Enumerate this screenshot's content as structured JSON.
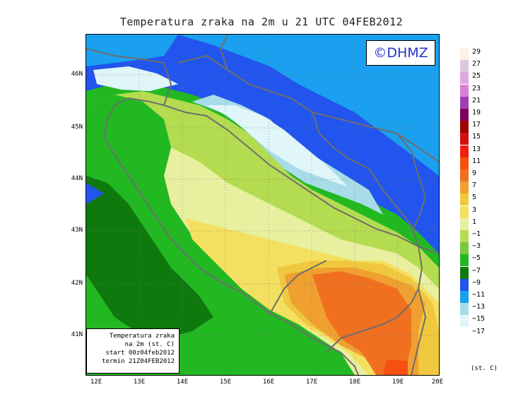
{
  "title": "Temperatura zraka na 2m u 21 UTC 04FEB2012",
  "logo": "©DHMZ",
  "info": {
    "line1": "Temperatura zraka",
    "line2": "na 2m (st. C)",
    "line3": "start 00z04feb2012",
    "line4": "termin 21Z04FEB2012"
  },
  "lat_labels": [
    "46N",
    "45N",
    "44N",
    "43N",
    "42N",
    "41N"
  ],
  "lon_labels": [
    "12E",
    "13E",
    "14E",
    "15E",
    "16E",
    "17E",
    "18E",
    "19E",
    "20E"
  ],
  "legend": {
    "labels": [
      "29",
      "27",
      "25",
      "23",
      "21",
      "19",
      "17",
      "15",
      "13",
      "11",
      "9",
      "7",
      "5",
      "3",
      "1",
      "−1",
      "−3",
      "−5",
      "−7",
      "−9",
      "−11",
      "−13",
      "−15",
      "−17"
    ],
    "colors": [
      "#fff0e6",
      "#dcc8dc",
      "#e0a6e0",
      "#d880d8",
      "#a040b0",
      "#800060",
      "#a00000",
      "#d21010",
      "#f02010",
      "#f85010",
      "#f07020",
      "#f0a030",
      "#f0c840",
      "#f4e060",
      "#e8f0a0",
      "#b4dc50",
      "#78c840",
      "#22b822",
      "#0e7a0e",
      "#2255ee",
      "#1aa0ee",
      "#a8dce8",
      "#e0f6f8",
      "#ffffff"
    ],
    "units": "(st. C)"
  },
  "palette": {
    "deep_blue": "#2255ee",
    "sky_blue": "#1aa0ee",
    "light_cyan": "#a8dce8",
    "pale_cyan": "#e0f6f8",
    "dark_green": "#0e7a0e",
    "green": "#22b822",
    "mid_green": "#78c840",
    "light_green": "#b4dc50",
    "pale_yellow_green": "#e8f0a0",
    "yellow": "#f4e060",
    "gold": "#f0c840",
    "light_orange": "#f0a030",
    "orange": "#f07020",
    "red_orange": "#f85010",
    "border_gray": "#6e6e6e"
  }
}
